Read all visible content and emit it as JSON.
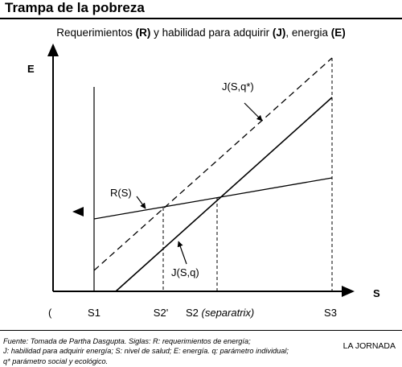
{
  "header": {
    "title": "Trampa de la pobreza"
  },
  "diagram": {
    "subtitle_parts": [
      "Requerimientos ",
      "(R)",
      " y habilidad para adquirir ",
      "(J)",
      ", energia ",
      "(E)"
    ],
    "y_axis_label": "E",
    "x_axis_label": "S",
    "left_mark": "(",
    "tick_labels": [
      "S1",
      "S2'",
      "S2 ",
      "(separatrix)",
      "S3"
    ],
    "curve_labels": {
      "j_star": "J(S,q*)",
      "r": "R(S)",
      "j": "J(S,q)"
    }
  },
  "footer": {
    "lines": [
      "Fuente: Tomada de Partha Dasgupta. Siglas: R: requerimientos de energía;",
      "J: habilidad para adquirir energía; S: nivel de salud; E: energía. q: parámetro individual;",
      "q* parámetro social y ecológico."
    ],
    "credit": "LA JORNADA"
  }
}
